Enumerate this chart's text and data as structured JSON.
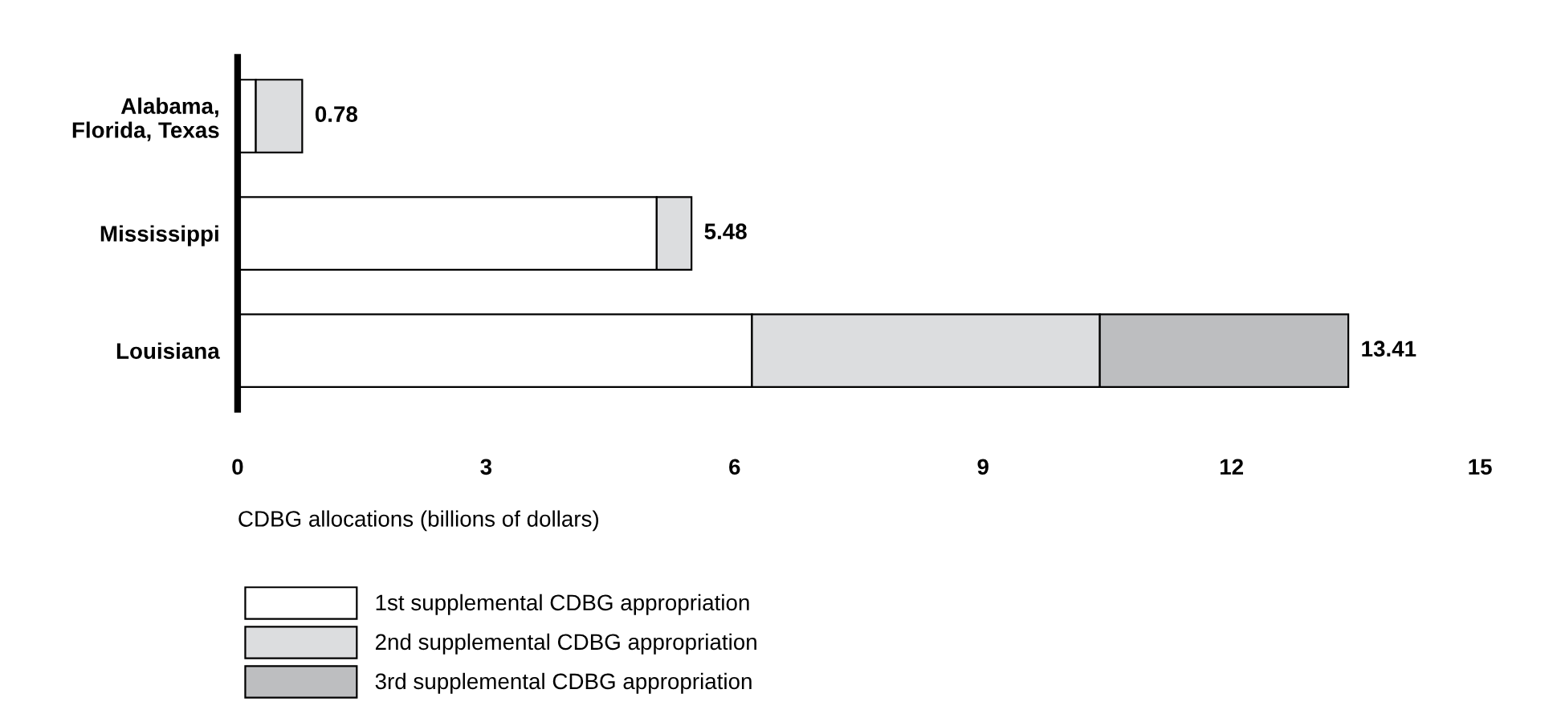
{
  "chart_data": {
    "type": "bar",
    "orientation": "horizontal",
    "stacked": true,
    "categories": [
      "Alabama, Florida, Texas",
      "Mississippi",
      "Louisiana"
    ],
    "series": [
      {
        "name": "1st supplemental CDBG appropriation",
        "color": "#ffffff",
        "values": [
          0.22,
          5.06,
          6.21
        ]
      },
      {
        "name": "2nd supplemental CDBG appropriation",
        "color": "#dcdddf",
        "values": [
          0.56,
          0.42,
          4.2
        ]
      },
      {
        "name": "3rd supplemental CDBG appropriation",
        "color": "#bdbec0",
        "values": [
          null,
          null,
          3.0
        ]
      }
    ],
    "totals": [
      "0.78",
      "5.48",
      "13.41"
    ],
    "xlabel": "CDBG allocations (billions of dollars)",
    "xlim": [
      0,
      15
    ],
    "xticks": [
      0,
      3,
      6,
      9,
      12,
      15
    ],
    "grid": false,
    "legend": "bottom left"
  }
}
